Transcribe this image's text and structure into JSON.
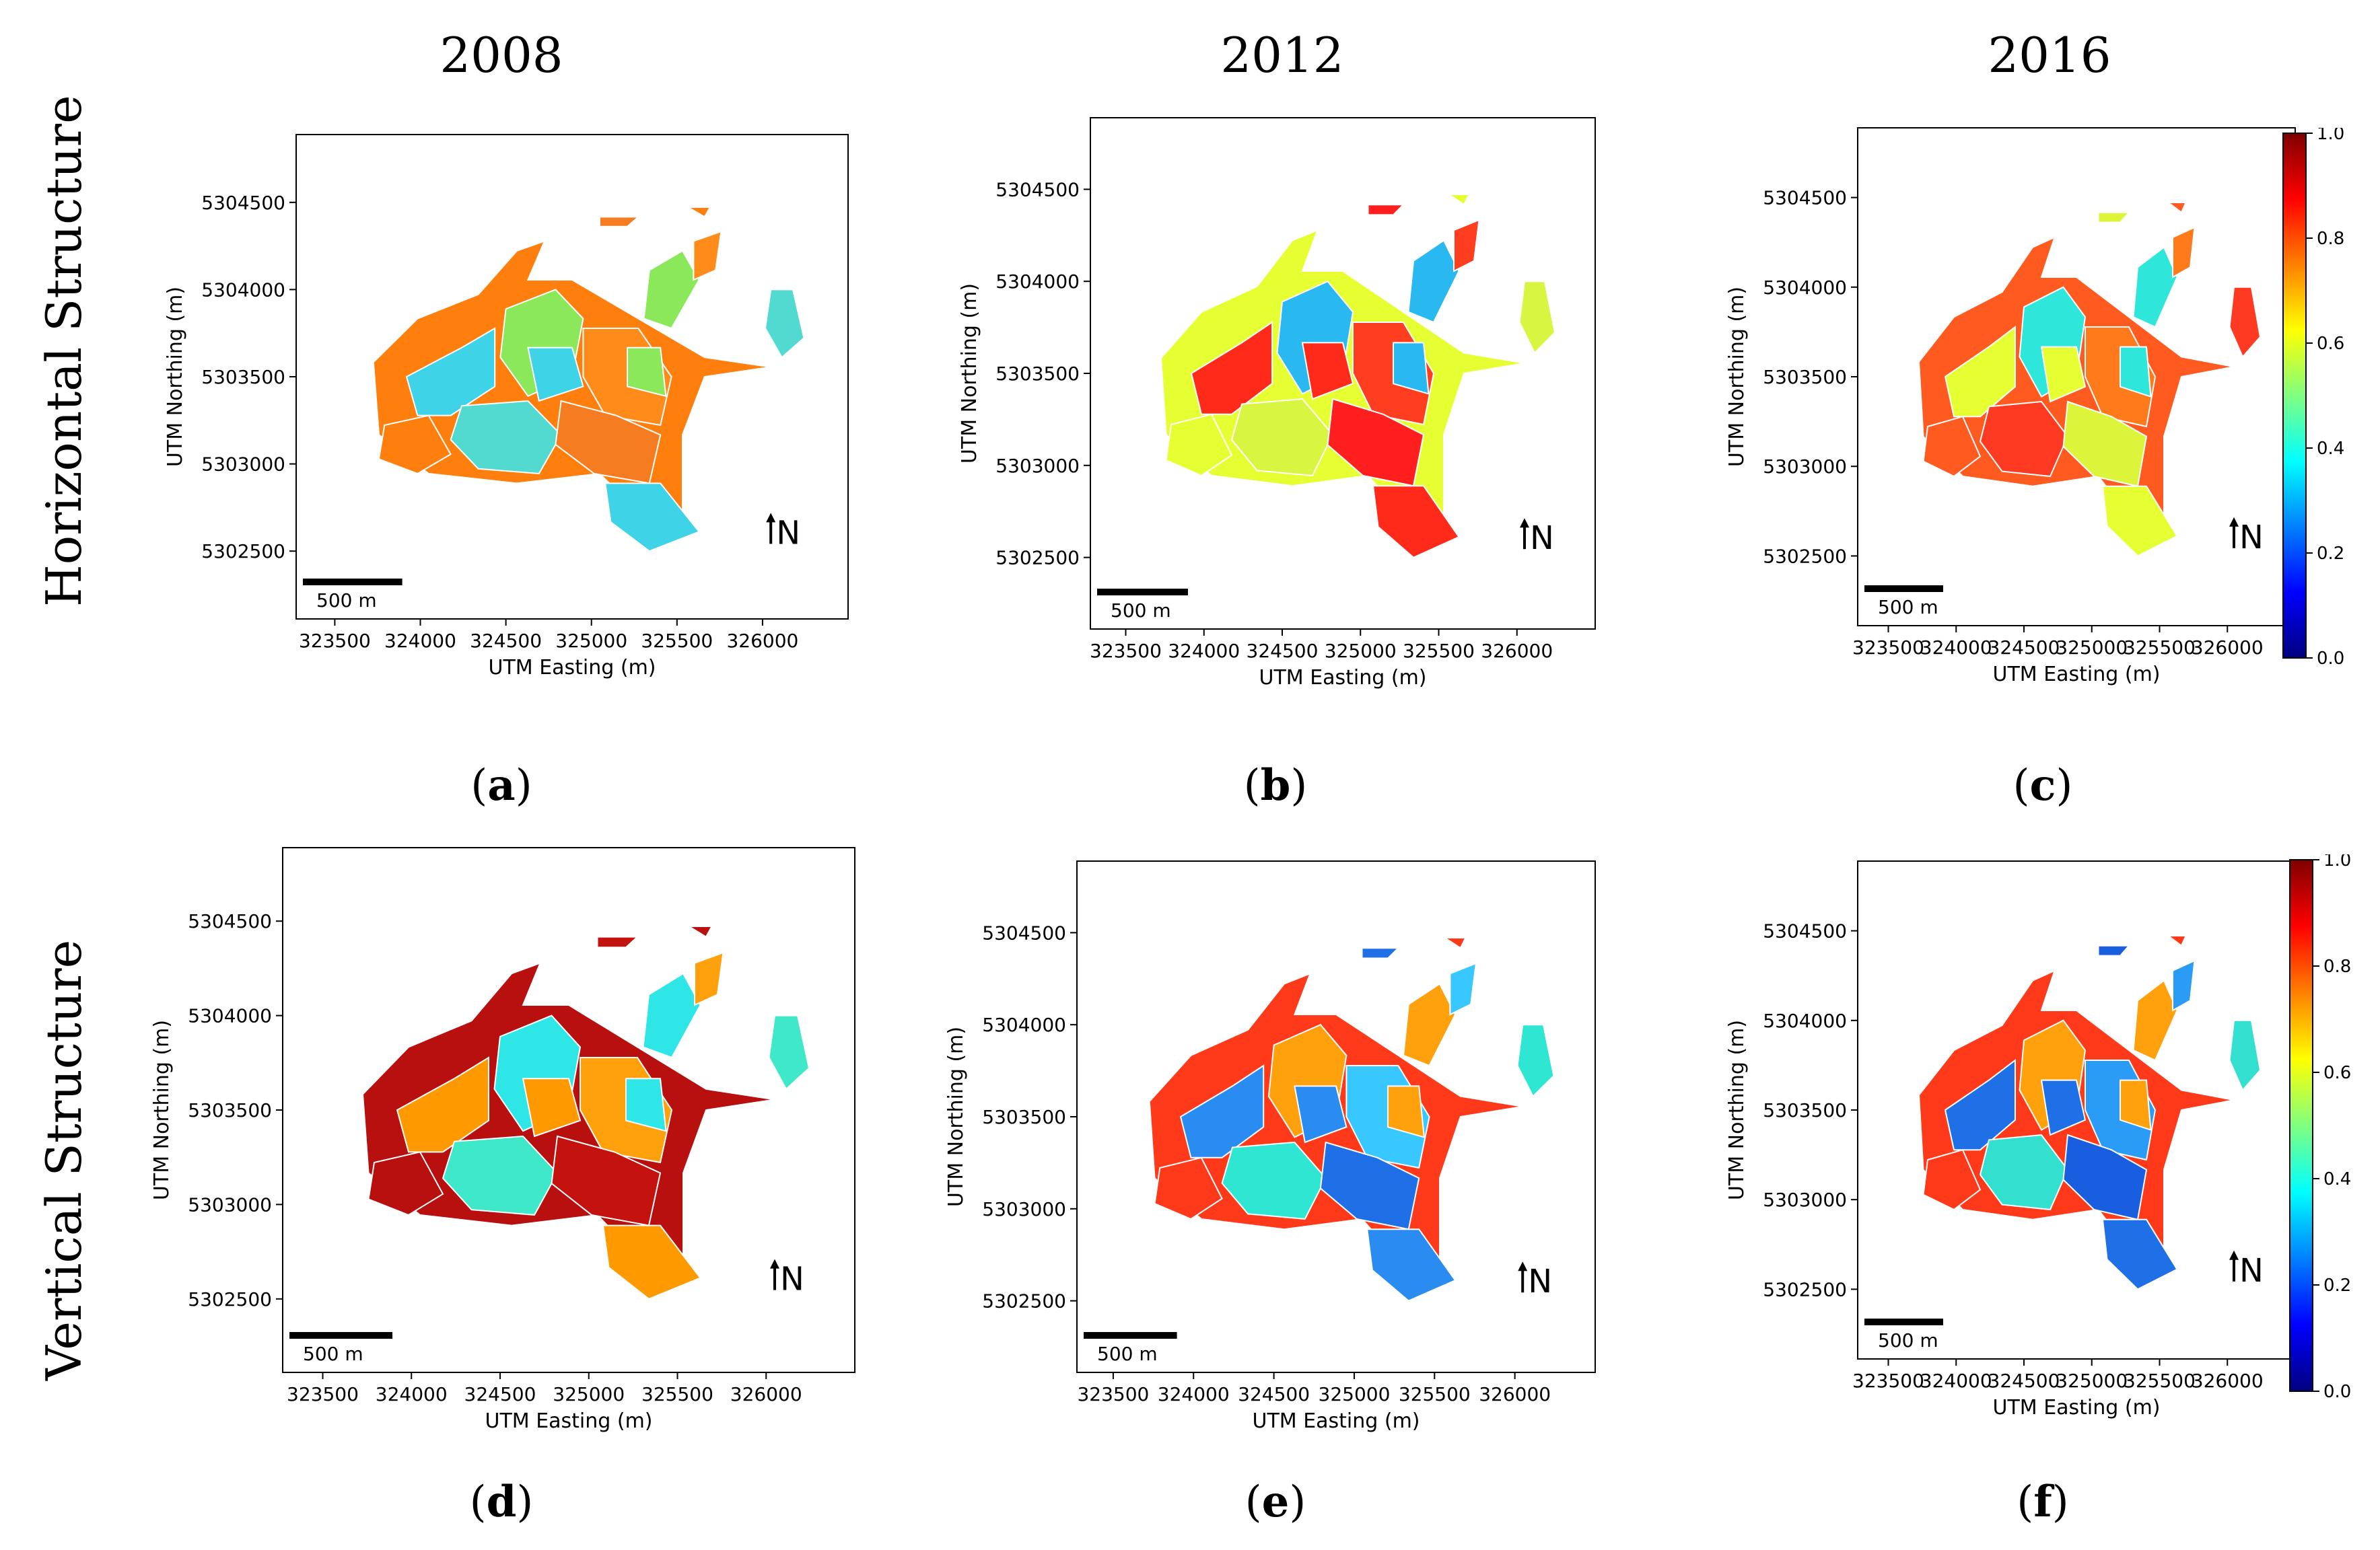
{
  "column_titles": [
    "2008",
    "2012",
    "2016"
  ],
  "row_titles": [
    "Horizontal Structure",
    "Vertical Structure"
  ],
  "axis": {
    "xlabel": "UTM Easting (m)",
    "ylabel": "UTM Northing (m)",
    "x_ticks": [
      "323500",
      "324000",
      "324500",
      "325000",
      "325500",
      "326000"
    ],
    "y_ticks": [
      "5304500",
      "5304000",
      "5303500",
      "5303000",
      "5302500"
    ],
    "scale_bar": "500 m",
    "north": "N"
  },
  "colorbar": {
    "ticks": [
      "1.0",
      "0.8",
      "0.6",
      "0.4",
      "0.2",
      "0.0"
    ],
    "colors": [
      "#7f0000",
      "#ff0000",
      "#ff8000",
      "#ffff00",
      "#80ff80",
      "#00ffff",
      "#0080ff",
      "#0000ff",
      "#00007f"
    ]
  },
  "panels": [
    {
      "label": "a",
      "palette": [
        "#ff7f0e",
        "#3ed3e6",
        "#8ae85a",
        "#ff8c1a",
        "#52d9d0",
        "#f57c20"
      ]
    },
    {
      "label": "b",
      "palette": [
        "#e6ff33",
        "#ff2a1a",
        "#2ab8f0",
        "#ff3d1f",
        "#d8f542",
        "#ff1f1f"
      ]
    },
    {
      "label": "c",
      "palette": [
        "#ff5a1f",
        "#e6ff33",
        "#2ee6d9",
        "#ff7a1a",
        "#ff3a22",
        "#dcf43a"
      ]
    },
    {
      "label": "d",
      "palette": [
        "#b80f0f",
        "#ff9900",
        "#2ee6e6",
        "#ffa10d",
        "#3fe8c8",
        "#c4120e"
      ]
    },
    {
      "label": "e",
      "palette": [
        "#ff3a1a",
        "#2a8cf0",
        "#ffa10d",
        "#38c8ff",
        "#2ee6d2",
        "#1f6fe6"
      ]
    },
    {
      "label": "f",
      "palette": [
        "#ff3a1a",
        "#1f6fe6",
        "#ffa10d",
        "#2a9cf5",
        "#33e0d0",
        "#1a5ee0"
      ]
    }
  ]
}
